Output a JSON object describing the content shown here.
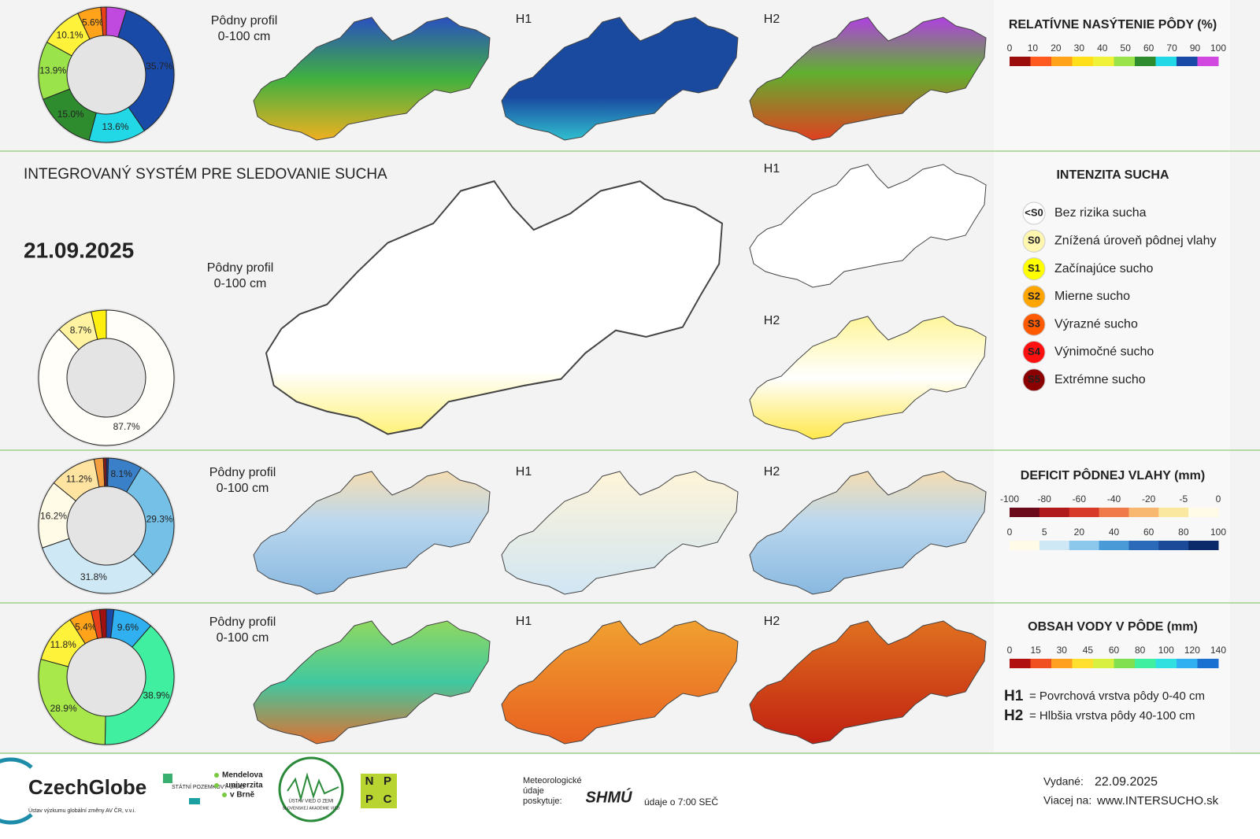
{
  "header": {
    "title": "INTEGROVANÝ SYSTÉM PRE SLEDOVANIE SUCHA",
    "date": "21.09.2025"
  },
  "panels": [
    {
      "map_labels": [
        "Pôdny profil",
        "0-100 cm",
        "H1",
        "H2"
      ],
      "donut": {
        "values": [
          4.8,
          35.7,
          13.6,
          15.0,
          13.9,
          10.1,
          5.6,
          1.3
        ],
        "value_labels": [
          null,
          "35.7%",
          "13.6%",
          "15.0%",
          "13.9%",
          "10.1%",
          "5.6%",
          null
        ],
        "colors": [
          "#c04ae0",
          "#1a4aa8",
          "#22d8e6",
          "#2e8b2e",
          "#9be34a",
          "#fff23a",
          "#ffa31a",
          "#e8401a"
        ]
      },
      "legend": {
        "title": "RELATÍVNE NASÝTENIE PÔDY (%)",
        "scales": [
          {
            "labels": [
              "0",
              "10",
              "20",
              "30",
              "40",
              "50",
              "60",
              "70",
              "90",
              "100"
            ],
            "colors": [
              "#9b0d0d",
              "#ff5a1f",
              "#ffa31a",
              "#ffdf1a",
              "#f0f23a",
              "#9be34a",
              "#2e8b2e",
              "#22d8e6",
              "#1a4aa8",
              "#d048e0"
            ]
          }
        ]
      }
    },
    {
      "map_labels": [
        "Pôdny profil",
        "0-100 cm",
        "H1",
        "H2"
      ],
      "donut": {
        "values": [
          87.7,
          8.7,
          3.6
        ],
        "value_labels": [
          "87.7%",
          "8.7%",
          null
        ],
        "colors": [
          "#fffef8",
          "#fff2a0",
          "#ffef10"
        ]
      },
      "legend": {
        "title": "INTENZITA SUCHA",
        "items": [
          {
            "code": "<S0",
            "label": "Bez rizika sucha",
            "color": "#ffffff"
          },
          {
            "code": "S0",
            "label": "Znížená úroveň pôdnej vlahy",
            "color": "#fff6b0"
          },
          {
            "code": "S1",
            "label": "Začínajúce sucho",
            "color": "#ffff00"
          },
          {
            "code": "S2",
            "label": "Mierne sucho",
            "color": "#ffa500"
          },
          {
            "code": "S3",
            "label": "Výrazné sucho",
            "color": "#ff5a00"
          },
          {
            "code": "S4",
            "label": "Výnimočné sucho",
            "color": "#ff1010"
          },
          {
            "code": "S5",
            "label": "Extrémne sucho",
            "color": "#8b0000"
          }
        ]
      }
    },
    {
      "map_labels": [
        "Pôdny profil",
        "0-100 cm",
        "H1",
        "H2"
      ],
      "donut": {
        "values": [
          0.5,
          8.1,
          29.3,
          31.8,
          16.2,
          11.2,
          2.2,
          0.7
        ],
        "value_labels": [
          null,
          "8.1%",
          "29.3%",
          "31.8%",
          "16.2%",
          "11.2%",
          null,
          null
        ],
        "colors": [
          "#1a3a90",
          "#3a80c8",
          "#74c0e6",
          "#cfe8f6",
          "#fffbe6",
          "#ffe3a0",
          "#f5a040",
          "#8a1a1a"
        ]
      },
      "legend": {
        "title": "DEFICIT PÔDNEJ VLAHY (mm)",
        "scales": [
          {
            "labels": [
              "-100",
              "-80",
              "-60",
              "-40",
              "-20",
              "-5",
              "0"
            ],
            "colors": [
              "#6a0a1a",
              "#b01a1a",
              "#d83a2a",
              "#f07a4a",
              "#f8b870",
              "#fae8a0",
              "#fffbe6"
            ]
          },
          {
            "labels": [
              "0",
              "5",
              "20",
              "40",
              "60",
              "80",
              "100"
            ],
            "colors": [
              "#fffbe6",
              "#cfe8f6",
              "#8cc8ec",
              "#4a9ad8",
              "#2a6ab8",
              "#1a4a98",
              "#0a2a6a"
            ]
          }
        ]
      }
    },
    {
      "map_labels": [
        "Pôdny profil",
        "0-100 cm",
        "H1",
        "H2"
      ],
      "donut": {
        "values": [
          1.8,
          9.6,
          38.9,
          28.9,
          11.8,
          5.4,
          2.0,
          1.6
        ],
        "value_labels": [
          null,
          "9.6%",
          "38.9%",
          "28.9%",
          "11.8%",
          "5.4%",
          null,
          null
        ],
        "colors": [
          "#1a4aa8",
          "#30b0f0",
          "#40f0a0",
          "#a8e84a",
          "#fff23a",
          "#ffa31a",
          "#e8401a",
          "#a01010"
        ]
      },
      "legend": {
        "title": "OBSAH VODY V PÔDE (mm)",
        "scales": [
          {
            "labels": [
              "0",
              "15",
              "30",
              "45",
              "60",
              "80",
              "100",
              "120",
              "140"
            ],
            "colors": [
              "#b01010",
              "#f05020",
              "#ffa020",
              "#ffe030",
              "#d8f040",
              "#80e050",
              "#40f0a0",
              "#30e0e0",
              "#30b0f0",
              "#1a70d0"
            ]
          }
        ],
        "notes": [
          {
            "key": "H1",
            "text": "= Povrchová vrstva pôdy 0-40 cm"
          },
          {
            "key": "H2",
            "text": "= Hlbšia vrstva pôdy 40-100 cm"
          }
        ]
      }
    }
  ],
  "footer": {
    "czechglobe": "CzechGlobe",
    "czechglobe_sub": "Ústav výzkumu globální změny AV ČR, v.v.i.",
    "spu": "STÁTNÍ POZEMKOVÝ ÚŘAD",
    "mendel": [
      "Mendelova",
      "univerzita",
      "v Brně"
    ],
    "uvz": "ÚSTAV VIED O ZEMI",
    "uvz_sub": "SLOVENSKEJ AKADÉMIE VIED",
    "nppc": [
      "N",
      "P",
      "P",
      "C"
    ],
    "meteo": [
      "Meteorologické",
      "údaje",
      "poskytuje:"
    ],
    "shmu": "SHMÚ",
    "time": "údaje o 7:00 SEČ",
    "issued_label": "Vydané:",
    "issued": "22.09.2025",
    "more_label": "Viacej na:",
    "web": "www.INTERSUCHO.sk"
  }
}
